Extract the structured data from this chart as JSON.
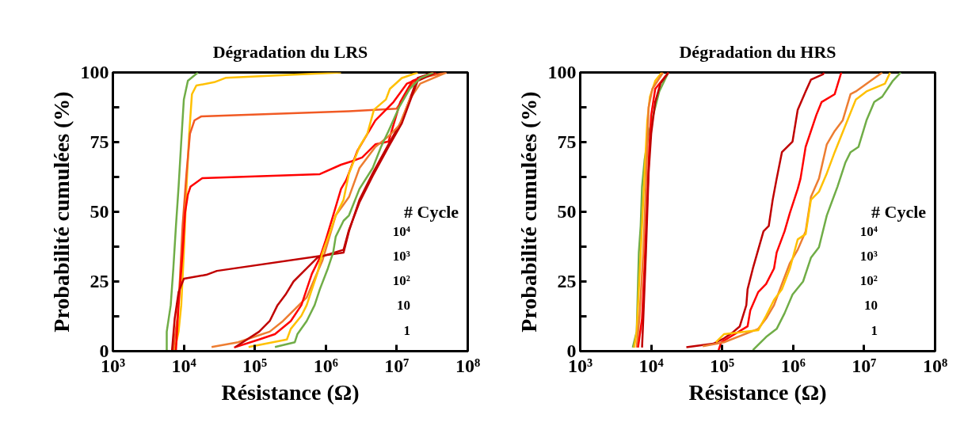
{
  "chart_data": [
    {
      "type": "line",
      "title": "Dégradation du LRS",
      "xlabel": "Résistance (Ω)",
      "ylabel": "Probabilité cumulées (%)",
      "log": "x",
      "grid": false,
      "xlim": [
        1000,
        100000000
      ],
      "xticks": [
        {
          "value": 1000,
          "label": "10³"
        },
        {
          "value": 10000,
          "label": "10⁴"
        },
        {
          "value": 100000,
          "label": "10⁵"
        },
        {
          "value": 1000000,
          "label": "10⁶"
        },
        {
          "value": 10000000,
          "label": "10⁷"
        },
        {
          "value": 100000000,
          "label": "10⁸"
        }
      ],
      "ylim": [
        0,
        100
      ],
      "yticks": [
        0,
        {
          "value": 12.5,
          "label": null
        },
        25,
        {
          "value": 37.5,
          "label": null
        },
        50,
        {
          "value": 62.5,
          "label": null
        },
        75,
        {
          "value": 87.5,
          "label": null
        },
        100
      ],
      "annotations": [
        "# Cycle",
        "10⁴",
        "10³",
        "10²",
        "10",
        "1"
      ],
      "series": [
        {
          "color": "#70ad47",
          "x": [
            5740,
            5740,
            6530,
            7110,
            7740,
            8430,
            9190,
            10000,
            11400,
            15800
          ],
          "values": [
            0.4,
            7,
            16.5,
            29.7,
            44.9,
            59,
            75.2,
            90.3,
            97,
            100
          ]
        },
        {
          "color": "#ffc000",
          "x": [
            7430,
            8430,
            9190,
            10000,
            10900,
            11900,
            13000,
            15000,
            26800,
            39400,
            1640000
          ],
          "values": [
            0.4,
            7,
            16.5,
            35.4,
            59,
            78,
            92.2,
            95.3,
            96.5,
            98.1,
            100
          ]
        },
        {
          "color": "#f15a24",
          "x": [
            7110,
            8070,
            8810,
            9600,
            10900,
            12200,
            14100,
            17500,
            2120000,
            9900000,
            12200000,
            16600000,
            21400000,
            50000000
          ],
          "values": [
            0.4,
            11.7,
            26,
            45,
            63.8,
            78,
            82.8,
            84.2,
            86.1,
            87,
            90.3,
            96,
            98,
            100
          ]
        },
        {
          "color": "#ff0000",
          "x": [
            7740,
            8430,
            9600,
            10400,
            11400,
            12400,
            18200,
            824000,
            1640000,
            2310000,
            3250000,
            4990000,
            7650000,
            11200000,
            16600000,
            32900000
          ],
          "values": [
            0.4,
            16.5,
            35.4,
            49.6,
            56.2,
            59,
            62.1,
            63.5,
            66.9,
            68.1,
            69.5,
            74.2,
            75.2,
            89.4,
            97,
            100
          ]
        },
        {
          "color": "#c00000",
          "x": [
            6820,
            7430,
            8430,
            10000,
            20700,
            29200,
            1780000,
            2120000,
            2980000,
            4580000,
            7650000,
            11800000,
            15200000,
            19700000,
            32900000
          ],
          "values": [
            0.4,
            11.7,
            21.2,
            26,
            27.4,
            28.8,
            35.4,
            43,
            54.3,
            63.8,
            74.2,
            82.8,
            90.3,
            98,
            100
          ]
        },
        {
          "color": "#ed7d31",
          "x": [
            24600,
            58000,
            97000,
            162000,
            249000,
            382000,
            538000,
            696000,
            900000,
            1380000,
            2120000,
            2980000,
            4990000,
            7650000,
            10800000,
            15200000,
            21400000,
            50000000
          ],
          "values": [
            1.5,
            3.2,
            5.1,
            7,
            10.8,
            15.5,
            19.3,
            26,
            32.6,
            48.7,
            55.3,
            65.7,
            73.3,
            77.1,
            80.9,
            90.3,
            96,
            100
          ]
        },
        {
          "color": "#ff0000",
          "x": [
            51000,
            115000,
            192000,
            321000,
            453000,
            538000,
            638000,
            824000,
            980000,
            1270000,
            1640000,
            1940000,
            2800000,
            4990000,
            9000000,
            13900000,
            32900000
          ],
          "values": [
            1.3,
            4.2,
            6.1,
            10.8,
            16.5,
            22.2,
            27.8,
            33.5,
            39.2,
            48.7,
            58.2,
            61.4,
            72,
            82.8,
            89.4,
            96,
            100
          ]
        },
        {
          "color": "#c00000",
          "x": [
            53200,
            115000,
            162000,
            209000,
            271000,
            351000,
            538000,
            757000,
            1780000,
            2120000,
            2980000,
            4580000,
            7650000,
            11800000,
            15200000,
            19700000,
            35800000
          ],
          "values": [
            1.5,
            7,
            10.8,
            16.5,
            20.3,
            25,
            29.7,
            33.5,
            36.4,
            43.5,
            53.4,
            62.9,
            73.3,
            81.8,
            89.4,
            97,
            100
          ]
        },
        {
          "color": "#ffc000",
          "x": [
            81700,
            283000,
            321000,
            453000,
            538000,
            638000,
            757000,
            900000,
            1160000,
            1380000,
            1780000,
            2120000,
            2980000,
            3850000,
            4770000,
            7030000,
            8000000,
            11800000,
            19700000
          ],
          "values": [
            1.5,
            4.2,
            8,
            12.7,
            16.5,
            22.2,
            27.8,
            35.4,
            43,
            48.7,
            54.3,
            63.8,
            73.3,
            78,
            86.6,
            90.3,
            94.1,
            98,
            100
          ]
        },
        {
          "color": "#70ad47",
          "x": [
            192000,
            366000,
            398000,
            538000,
            696000,
            824000,
            1070000,
            1270000,
            1380000,
            1780000,
            2120000,
            2980000,
            4580000,
            6000000,
            7650000,
            10800000,
            15200000,
            21400000,
            32900000
          ],
          "values": [
            1.5,
            3.2,
            6.1,
            10.8,
            16.5,
            22.2,
            29.7,
            35.4,
            41.1,
            46.8,
            48.7,
            58.2,
            65.7,
            73.3,
            79,
            87.5,
            94.1,
            98,
            100
          ]
        }
      ]
    },
    {
      "type": "line",
      "title": "Dégradation du HRS",
      "xlabel": "Résistance (Ω)",
      "ylabel": "Probabilité cumulées (%)",
      "log": "x",
      "grid": false,
      "xlim": [
        1000,
        100000000
      ],
      "xticks": [
        {
          "value": 1000,
          "label": "10³"
        },
        {
          "value": 10000,
          "label": "10⁴"
        },
        {
          "value": 100000,
          "label": "10⁵"
        },
        {
          "value": 1000000,
          "label": "10⁶"
        },
        {
          "value": 10000000,
          "label": "10⁷"
        },
        {
          "value": 100000000,
          "label": "10⁸"
        }
      ],
      "ylim": [
        0,
        100
      ],
      "yticks": [
        0,
        {
          "value": 12.5,
          "label": null
        },
        25,
        {
          "value": 37.5,
          "label": null
        },
        50,
        {
          "value": 62.5,
          "label": null
        },
        75,
        {
          "value": 87.5,
          "label": null
        },
        100
      ],
      "annotations": [
        "# Cycle",
        "10⁴",
        "10³",
        "10²",
        "10",
        "1"
      ],
      "series": [
        {
          "color": "#70ad47",
          "x": [
            5500,
            6250,
            6700,
            7110,
            7430,
            8070,
            9190,
            11400,
            13000,
            16000,
            17500
          ],
          "values": [
            1.3,
            7,
            35.4,
            44.9,
            59,
            68.6,
            78,
            87.5,
            93.2,
            98,
            100
          ]
        },
        {
          "color": "#ffc000",
          "x": [
            5740,
            6250,
            7110,
            8070,
            8810,
            9600,
            11400,
            14100
          ],
          "values": [
            1.3,
            7,
            35.4,
            63.8,
            82.8,
            91.3,
            97,
            100
          ]
        },
        {
          "color": "#ed7d31",
          "x": [
            6250,
            6810,
            7740,
            8430,
            9190,
            10400,
            14700
          ],
          "values": [
            1.3,
            11.7,
            35.4,
            59,
            87.5,
            94.1,
            100
          ]
        },
        {
          "color": "#ff0000",
          "x": [
            6530,
            7430,
            8070,
            8810,
            9420,
            10000,
            11400,
            17500
          ],
          "values": [
            1.3,
            11.7,
            30.7,
            54.3,
            73.3,
            84.7,
            94.1,
            100
          ]
        },
        {
          "color": "#c00000",
          "x": [
            7430,
            7740,
            8430,
            9190,
            10000,
            11400,
            13500,
            17500
          ],
          "values": [
            1.3,
            11.7,
            35.4,
            63.8,
            78,
            89.4,
            96,
            100
          ]
        },
        {
          "color": "#c00000",
          "x": [
            31300,
            75000,
            106000,
            137000,
            177000,
            219000,
            228000,
            271000,
            322000,
            382000,
            453000,
            515000,
            586000,
            695000,
            980000,
            1160000,
            1500000,
            1780000,
            2620000,
            2740000
          ],
          "values": [
            1.4,
            2.7,
            4.6,
            6.5,
            8.9,
            16.5,
            22.2,
            29.7,
            36.4,
            43,
            44.9,
            54.3,
            61.9,
            71.4,
            75.2,
            86.6,
            93.2,
            97.4,
            99.3,
            100
          ]
        },
        {
          "color": "#ff0000",
          "x": [
            89100,
            97000,
            228000,
            249000,
            322000,
            416000,
            538000,
            586000,
            757000,
            900000,
            1160000,
            1270000,
            1500000,
            2120000,
            2520000,
            3850000,
            4770000
          ],
          "values": [
            0.4,
            3.2,
            8.9,
            14.6,
            21.2,
            24.1,
            29.7,
            35.4,
            43,
            49.6,
            58.2,
            61.9,
            73.3,
            84.7,
            89.4,
            92.2,
            100
          ]
        },
        {
          "color": "#ed7d31",
          "x": [
            53200,
            106000,
            322000,
            416000,
            538000,
            695000,
            900000,
            1160000,
            1500000,
            1780000,
            2310000,
            2980000,
            3850000,
            4990000,
            6440000,
            7650000,
            18000000
          ],
          "values": [
            1.8,
            3.2,
            8,
            11.7,
            16.5,
            24.1,
            31.6,
            36.4,
            43,
            55.3,
            61.9,
            74.2,
            79,
            82.8,
            92.2,
            93.2,
            100
          ]
        },
        {
          "color": "#ffc000",
          "x": [
            81700,
            106000,
            322000,
            416000,
            538000,
            695000,
            900000,
            1160000,
            1500000,
            1780000,
            2310000,
            2980000,
            3850000,
            5430000,
            7650000,
            10800000,
            19700000,
            23300000
          ],
          "values": [
            3.2,
            6.1,
            7.5,
            12.7,
            18.4,
            22.2,
            29.7,
            40.1,
            42,
            54.3,
            57.2,
            63.8,
            71.4,
            80.9,
            90.3,
            93.2,
            96,
            100
          ]
        },
        {
          "color": "#70ad47",
          "x": [
            271000,
            416000,
            586000,
            757000,
            980000,
            1380000,
            1780000,
            2310000,
            2980000,
            4210000,
            5430000,
            6440000,
            8340000,
            10800000,
            13900000,
            18000000,
            25400000,
            32900000
          ],
          "values": [
            0.4,
            5.1,
            8,
            13.6,
            20.3,
            25,
            33.5,
            37.3,
            48.7,
            59,
            67.6,
            71.4,
            73.3,
            82.8,
            89.4,
            91.3,
            97,
            100
          ]
        }
      ]
    }
  ]
}
